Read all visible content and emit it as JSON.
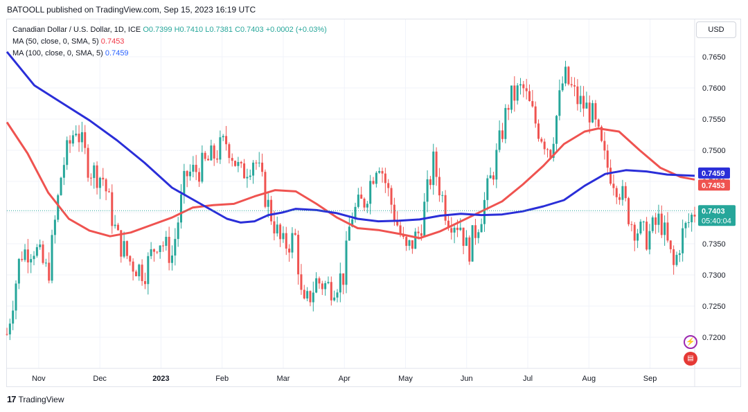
{
  "publisher_line": "BATOOLL published on TradingView.com, Sep 15, 2023 16:19 UTC",
  "legend": {
    "symbol": "Canadian Dollar / U.S. Dollar, 1D, ICE",
    "open": "O0.7399",
    "high": "H0.7410",
    "low": "L0.7381",
    "close": "C0.7403",
    "change": "+0.0002 (+0.03%)",
    "ma50_label": "MA (50, close, 0, SMA, 5)",
    "ma50_value": "0.7453",
    "ma100_label": "MA (100, close, 0, SMA, 5)",
    "ma100_value": "0.7459"
  },
  "currency": "USD",
  "footer_brand": "TradingView",
  "price_tags": {
    "ma100": "0.7459",
    "ma50": "0.7453",
    "last": "0.7403",
    "countdown": "05:40:04"
  },
  "colors": {
    "up": "#26a69a",
    "down": "#ef5350",
    "ma50": "#ef5350",
    "ma100": "#2a2ed8",
    "grid": "#f0f3fa"
  },
  "chart_data": {
    "type": "line",
    "title": "",
    "ylim": [
      0.715,
      0.771
    ],
    "y_ticks": [
      "0.7650",
      "0.7600",
      "0.7550",
      "0.7500",
      "0.7450",
      "0.7400",
      "0.7350",
      "0.7300",
      "0.7250",
      "0.7200"
    ],
    "x_ticks": [
      "Nov",
      "Dec",
      "2023",
      "Feb",
      "Mar",
      "Apr",
      "May",
      "Jun",
      "Jul",
      "Aug",
      "Sep"
    ],
    "grid": true,
    "series": [
      {
        "name": "MA (50, close, 0, SMA, 5)",
        "points": [
          [
            0,
            0.7545
          ],
          [
            0.03,
            0.7495
          ],
          [
            0.06,
            0.7432
          ],
          [
            0.09,
            0.739
          ],
          [
            0.12,
            0.7371
          ],
          [
            0.15,
            0.7362
          ],
          [
            0.18,
            0.7368
          ],
          [
            0.21,
            0.738
          ],
          [
            0.24,
            0.7392
          ],
          [
            0.27,
            0.7408
          ],
          [
            0.3,
            0.7412
          ],
          [
            0.33,
            0.7414
          ],
          [
            0.36,
            0.7426
          ],
          [
            0.39,
            0.7436
          ],
          [
            0.42,
            0.7434
          ],
          [
            0.45,
            0.7414
          ],
          [
            0.48,
            0.7392
          ],
          [
            0.51,
            0.7375
          ],
          [
            0.54,
            0.7372
          ],
          [
            0.57,
            0.7366
          ],
          [
            0.6,
            0.7359
          ],
          [
            0.63,
            0.737
          ],
          [
            0.66,
            0.7386
          ],
          [
            0.69,
            0.7402
          ],
          [
            0.72,
            0.7418
          ],
          [
            0.75,
            0.7445
          ],
          [
            0.78,
            0.7475
          ],
          [
            0.81,
            0.751
          ],
          [
            0.84,
            0.753
          ],
          [
            0.86,
            0.7535
          ],
          [
            0.89,
            0.753
          ],
          [
            0.92,
            0.75
          ],
          [
            0.95,
            0.7472
          ],
          [
            0.98,
            0.7457
          ],
          [
            1.0,
            0.7453
          ]
        ]
      },
      {
        "name": "MA (100, close, 0, SMA, 5)",
        "points": [
          [
            0,
            0.7658
          ],
          [
            0.04,
            0.7604
          ],
          [
            0.08,
            0.7576
          ],
          [
            0.12,
            0.7548
          ],
          [
            0.16,
            0.7516
          ],
          [
            0.2,
            0.748
          ],
          [
            0.24,
            0.744
          ],
          [
            0.28,
            0.7415
          ],
          [
            0.32,
            0.739
          ],
          [
            0.34,
            0.7384
          ],
          [
            0.36,
            0.7386
          ],
          [
            0.38,
            0.7396
          ],
          [
            0.4,
            0.74
          ],
          [
            0.42,
            0.7406
          ],
          [
            0.45,
            0.7404
          ],
          [
            0.48,
            0.7399
          ],
          [
            0.51,
            0.739
          ],
          [
            0.54,
            0.7386
          ],
          [
            0.57,
            0.7387
          ],
          [
            0.6,
            0.7389
          ],
          [
            0.63,
            0.7395
          ],
          [
            0.66,
            0.7398
          ],
          [
            0.69,
            0.7396
          ],
          [
            0.72,
            0.7397
          ],
          [
            0.75,
            0.7402
          ],
          [
            0.78,
            0.741
          ],
          [
            0.81,
            0.742
          ],
          [
            0.84,
            0.7443
          ],
          [
            0.87,
            0.7462
          ],
          [
            0.9,
            0.7468
          ],
          [
            0.93,
            0.7466
          ],
          [
            0.96,
            0.7461
          ],
          [
            1.0,
            0.7459
          ]
        ]
      }
    ],
    "price_path": [
      [
        0,
        0.7205
      ],
      [
        0.02,
        0.7335
      ],
      [
        0.04,
        0.7345
      ],
      [
        0.06,
        0.73
      ],
      [
        0.08,
        0.747
      ],
      [
        0.1,
        0.754
      ],
      [
        0.12,
        0.747
      ],
      [
        0.14,
        0.7455
      ],
      [
        0.16,
        0.736
      ],
      [
        0.18,
        0.732
      ],
      [
        0.2,
        0.7305
      ],
      [
        0.22,
        0.736
      ],
      [
        0.24,
        0.733
      ],
      [
        0.26,
        0.746
      ],
      [
        0.28,
        0.747
      ],
      [
        0.3,
        0.749
      ],
      [
        0.32,
        0.7515
      ],
      [
        0.34,
        0.746
      ],
      [
        0.36,
        0.749
      ],
      [
        0.38,
        0.741
      ],
      [
        0.4,
        0.7345
      ],
      [
        0.42,
        0.736
      ],
      [
        0.43,
        0.724
      ],
      [
        0.45,
        0.729
      ],
      [
        0.47,
        0.728
      ],
      [
        0.49,
        0.73
      ],
      [
        0.5,
        0.7395
      ],
      [
        0.52,
        0.742
      ],
      [
        0.54,
        0.749
      ],
      [
        0.56,
        0.741
      ],
      [
        0.58,
        0.7335
      ],
      [
        0.6,
        0.737
      ],
      [
        0.62,
        0.748
      ],
      [
        0.64,
        0.7395
      ],
      [
        0.66,
        0.738
      ],
      [
        0.67,
        0.7335
      ],
      [
        0.69,
        0.74
      ],
      [
        0.71,
        0.748
      ],
      [
        0.73,
        0.758
      ],
      [
        0.75,
        0.76
      ],
      [
        0.77,
        0.754
      ],
      [
        0.79,
        0.75
      ],
      [
        0.81,
        0.762
      ],
      [
        0.83,
        0.758
      ],
      [
        0.85,
        0.756
      ],
      [
        0.87,
        0.748
      ],
      [
        0.89,
        0.744
      ],
      [
        0.91,
        0.738
      ],
      [
        0.93,
        0.736
      ],
      [
        0.95,
        0.739
      ],
      [
        0.97,
        0.731
      ],
      [
        0.98,
        0.736
      ],
      [
        1.0,
        0.7403
      ]
    ]
  }
}
